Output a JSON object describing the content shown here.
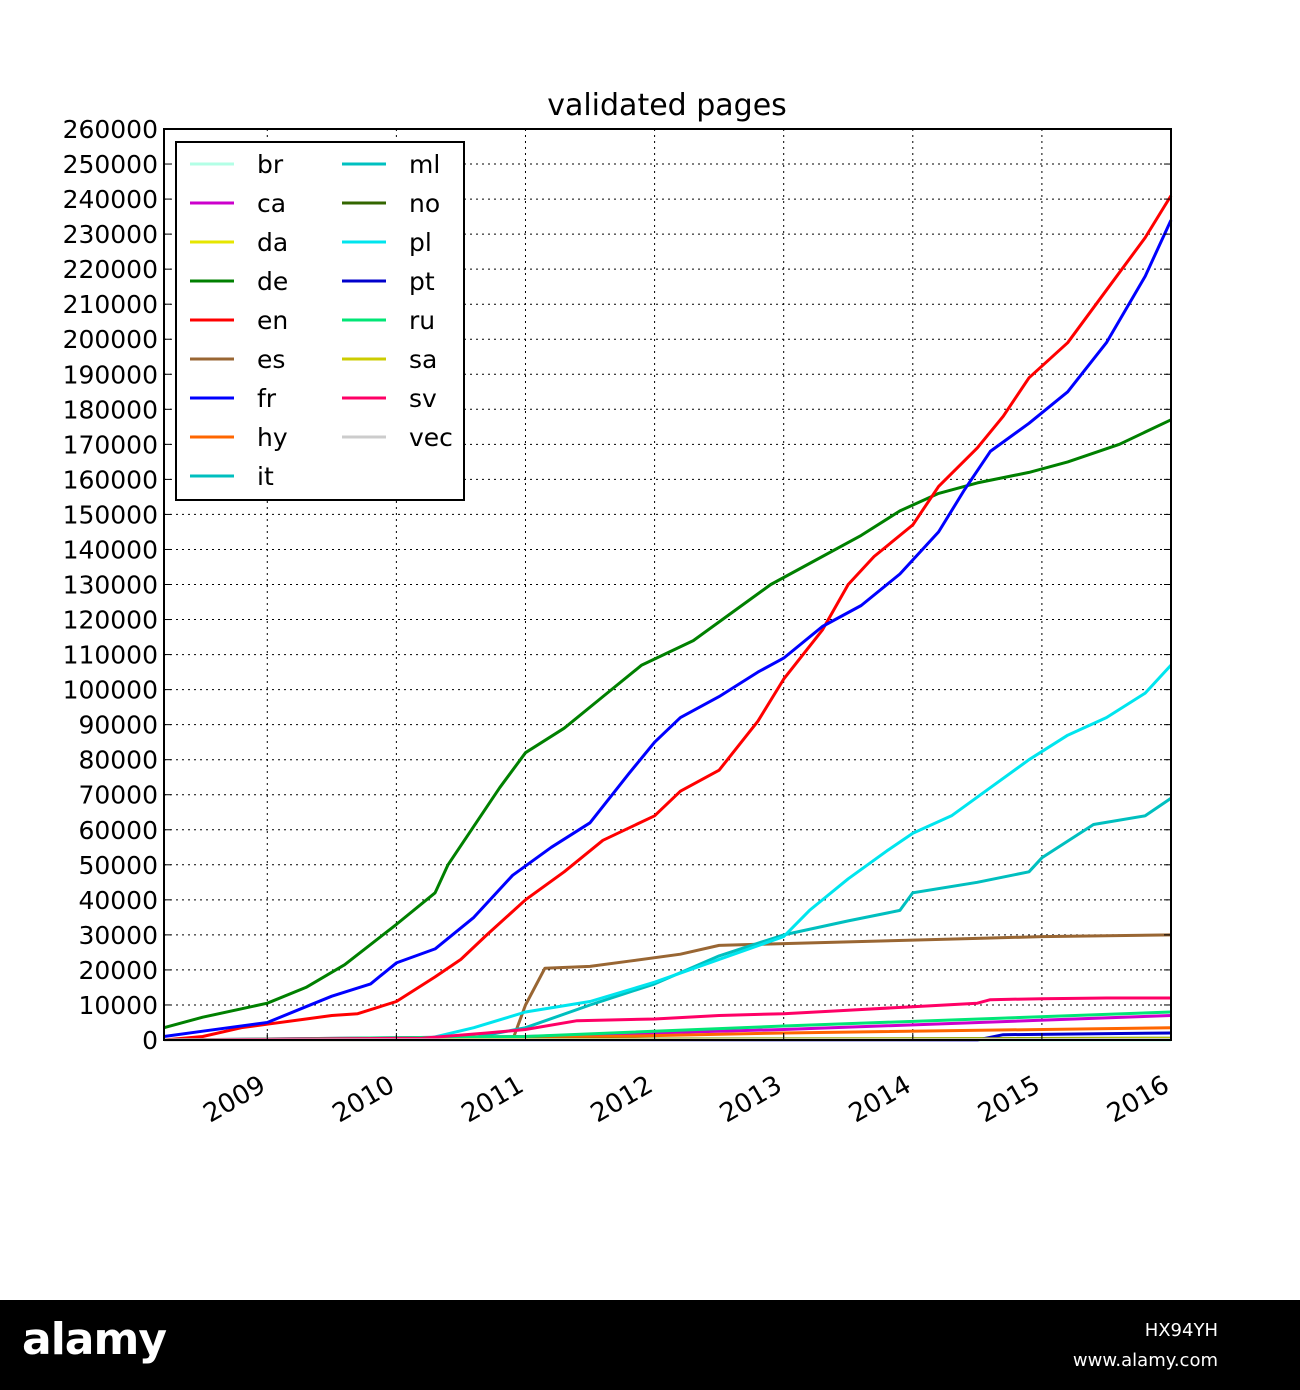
{
  "chart_data": {
    "type": "line",
    "title": "validated pages",
    "xlabel": "",
    "ylabel": "",
    "x_ticks": [
      "2009",
      "2010",
      "2011",
      "2012",
      "2013",
      "2014",
      "2015",
      "2016"
    ],
    "y_ticks": [
      0,
      10000,
      20000,
      30000,
      40000,
      50000,
      60000,
      70000,
      80000,
      90000,
      100000,
      110000,
      120000,
      130000,
      140000,
      150000,
      160000,
      170000,
      180000,
      190000,
      200000,
      210000,
      220000,
      230000,
      240000,
      250000,
      260000
    ],
    "xlim": [
      2008.2,
      2016.0
    ],
    "ylim": [
      0,
      260000
    ],
    "grid": true,
    "legend_position": "top-left",
    "series": [
      {
        "name": "br",
        "color": "#b3ffe6",
        "points": [
          [
            2008.2,
            0
          ],
          [
            2016.0,
            0
          ]
        ]
      },
      {
        "name": "ca",
        "color": "#cc00cc",
        "points": [
          [
            2008.2,
            0
          ],
          [
            2011.0,
            1000
          ],
          [
            2013.0,
            3000
          ],
          [
            2016.0,
            7000
          ]
        ]
      },
      {
        "name": "da",
        "color": "#e6e600",
        "points": [
          [
            2008.2,
            0
          ],
          [
            2016.0,
            300
          ]
        ]
      },
      {
        "name": "de",
        "color": "#008000",
        "points": [
          [
            2008.2,
            3500
          ],
          [
            2008.5,
            6500
          ],
          [
            2009.0,
            10500
          ],
          [
            2009.3,
            15000
          ],
          [
            2009.6,
            21500
          ],
          [
            2010.0,
            33000
          ],
          [
            2010.3,
            42000
          ],
          [
            2010.4,
            50000
          ],
          [
            2010.6,
            61000
          ],
          [
            2010.8,
            72000
          ],
          [
            2011.0,
            82000
          ],
          [
            2011.3,
            89000
          ],
          [
            2011.6,
            98000
          ],
          [
            2011.9,
            107000
          ],
          [
            2012.3,
            114000
          ],
          [
            2012.6,
            122000
          ],
          [
            2012.9,
            130000
          ],
          [
            2013.2,
            136000
          ],
          [
            2013.6,
            144000
          ],
          [
            2013.9,
            151000
          ],
          [
            2014.2,
            156000
          ],
          [
            2014.5,
            159000
          ],
          [
            2014.9,
            162000
          ],
          [
            2015.2,
            165000
          ],
          [
            2015.6,
            170000
          ],
          [
            2016.0,
            177000
          ]
        ]
      },
      {
        "name": "en",
        "color": "#ff0000",
        "points": [
          [
            2008.2,
            0
          ],
          [
            2008.5,
            1000
          ],
          [
            2008.8,
            3500
          ],
          [
            2009.0,
            4500
          ],
          [
            2009.3,
            6000
          ],
          [
            2009.5,
            7000
          ],
          [
            2009.7,
            7500
          ],
          [
            2010.0,
            11000
          ],
          [
            2010.3,
            18000
          ],
          [
            2010.5,
            23000
          ],
          [
            2010.7,
            30000
          ],
          [
            2011.0,
            40000
          ],
          [
            2011.3,
            48000
          ],
          [
            2011.6,
            57000
          ],
          [
            2012.0,
            64000
          ],
          [
            2012.2,
            71000
          ],
          [
            2012.5,
            77000
          ],
          [
            2012.8,
            91000
          ],
          [
            2013.0,
            103000
          ],
          [
            2013.3,
            117000
          ],
          [
            2013.5,
            130000
          ],
          [
            2013.7,
            138000
          ],
          [
            2014.0,
            147000
          ],
          [
            2014.2,
            158000
          ],
          [
            2014.5,
            169000
          ],
          [
            2014.7,
            178000
          ],
          [
            2014.9,
            189000
          ],
          [
            2015.2,
            199000
          ],
          [
            2015.5,
            214000
          ],
          [
            2015.8,
            229000
          ],
          [
            2016.0,
            241000
          ]
        ]
      },
      {
        "name": "es",
        "color": "#996633",
        "points": [
          [
            2008.2,
            0
          ],
          [
            2010.9,
            0
          ],
          [
            2011.0,
            10000
          ],
          [
            2011.15,
            20500
          ],
          [
            2011.5,
            21000
          ],
          [
            2011.8,
            22500
          ],
          [
            2012.2,
            24500
          ],
          [
            2012.5,
            27000
          ],
          [
            2013.0,
            27500
          ],
          [
            2013.5,
            28000
          ],
          [
            2014.0,
            28500
          ],
          [
            2014.5,
            29000
          ],
          [
            2015.0,
            29500
          ],
          [
            2016.0,
            30000
          ]
        ]
      },
      {
        "name": "fr",
        "color": "#0000ff",
        "points": [
          [
            2008.2,
            1000
          ],
          [
            2008.5,
            2500
          ],
          [
            2009.0,
            5000
          ],
          [
            2009.3,
            9500
          ],
          [
            2009.5,
            12500
          ],
          [
            2009.8,
            16000
          ],
          [
            2010.0,
            22000
          ],
          [
            2010.3,
            26000
          ],
          [
            2010.6,
            35000
          ],
          [
            2010.9,
            47000
          ],
          [
            2011.2,
            55000
          ],
          [
            2011.5,
            62000
          ],
          [
            2011.8,
            76000
          ],
          [
            2012.0,
            85000
          ],
          [
            2012.2,
            92000
          ],
          [
            2012.5,
            98000
          ],
          [
            2012.8,
            105000
          ],
          [
            2013.0,
            109000
          ],
          [
            2013.3,
            118000
          ],
          [
            2013.6,
            124000
          ],
          [
            2013.9,
            133000
          ],
          [
            2014.2,
            145000
          ],
          [
            2014.4,
            157000
          ],
          [
            2014.6,
            168000
          ],
          [
            2014.9,
            176000
          ],
          [
            2015.2,
            185000
          ],
          [
            2015.5,
            199000
          ],
          [
            2015.8,
            218000
          ],
          [
            2016.0,
            234000
          ]
        ]
      },
      {
        "name": "hy",
        "color": "#ff6600",
        "points": [
          [
            2008.2,
            0
          ],
          [
            2011.0,
            500
          ],
          [
            2013.0,
            2000
          ],
          [
            2016.0,
            3500
          ]
        ]
      },
      {
        "name": "it",
        "color": "#00bfbf",
        "points": [
          [
            2008.2,
            0
          ],
          [
            2010.5,
            0
          ],
          [
            2011.0,
            3500
          ],
          [
            2011.5,
            10000
          ],
          [
            2012.0,
            16000
          ],
          [
            2012.5,
            24000
          ],
          [
            2013.0,
            30000
          ],
          [
            2013.5,
            34000
          ],
          [
            2013.9,
            37000
          ],
          [
            2014.0,
            42000
          ],
          [
            2014.5,
            45000
          ],
          [
            2014.9,
            48000
          ],
          [
            2015.0,
            52000
          ],
          [
            2015.4,
            61500
          ],
          [
            2015.8,
            64000
          ],
          [
            2016.0,
            69000
          ]
        ]
      },
      {
        "name": "ml",
        "color": "#00c0c0",
        "points": [
          [
            2008.2,
            0
          ],
          [
            2016.0,
            300
          ]
        ]
      },
      {
        "name": "no",
        "color": "#336600",
        "points": [
          [
            2008.2,
            0
          ],
          [
            2016.0,
            500
          ]
        ]
      },
      {
        "name": "pl",
        "color": "#00e5ee",
        "points": [
          [
            2008.2,
            0
          ],
          [
            2010.2,
            0
          ],
          [
            2010.6,
            3500
          ],
          [
            2011.0,
            8000
          ],
          [
            2011.5,
            11000
          ],
          [
            2012.0,
            16500
          ],
          [
            2012.5,
            23000
          ],
          [
            2013.0,
            29500
          ],
          [
            2013.2,
            37000
          ],
          [
            2013.5,
            46000
          ],
          [
            2013.8,
            54000
          ],
          [
            2014.0,
            59000
          ],
          [
            2014.3,
            64000
          ],
          [
            2014.6,
            72000
          ],
          [
            2014.9,
            80000
          ],
          [
            2015.2,
            87000
          ],
          [
            2015.5,
            92000
          ],
          [
            2015.8,
            99000
          ],
          [
            2016.0,
            107000
          ]
        ]
      },
      {
        "name": "pt",
        "color": "#0000cc",
        "points": [
          [
            2008.2,
            0
          ],
          [
            2014.5,
            0
          ],
          [
            2014.7,
            1500
          ],
          [
            2016.0,
            2000
          ]
        ]
      },
      {
        "name": "ru",
        "color": "#00e676",
        "points": [
          [
            2008.2,
            0
          ],
          [
            2011.0,
            1000
          ],
          [
            2013.0,
            4000
          ],
          [
            2016.0,
            8000
          ]
        ]
      },
      {
        "name": "sa",
        "color": "#cccc00",
        "points": [
          [
            2008.2,
            0
          ],
          [
            2016.0,
            400
          ]
        ]
      },
      {
        "name": "sv",
        "color": "#ff0066",
        "points": [
          [
            2008.2,
            0
          ],
          [
            2010.2,
            500
          ],
          [
            2010.7,
            2000
          ],
          [
            2011.0,
            3000
          ],
          [
            2011.4,
            5500
          ],
          [
            2012.0,
            6000
          ],
          [
            2012.5,
            7000
          ],
          [
            2013.0,
            7500
          ],
          [
            2013.5,
            8500
          ],
          [
            2014.0,
            9500
          ],
          [
            2014.5,
            10500
          ],
          [
            2014.6,
            11500
          ],
          [
            2015.0,
            11800
          ],
          [
            2015.5,
            12000
          ],
          [
            2016.0,
            12000
          ]
        ]
      },
      {
        "name": "vec",
        "color": "#cccccc",
        "points": [
          [
            2008.2,
            0
          ],
          [
            2016.0,
            100
          ]
        ]
      }
    ]
  },
  "watermark": {
    "logo": "alamy",
    "image_id": "HX94YH",
    "site": "www.alamy.com"
  }
}
